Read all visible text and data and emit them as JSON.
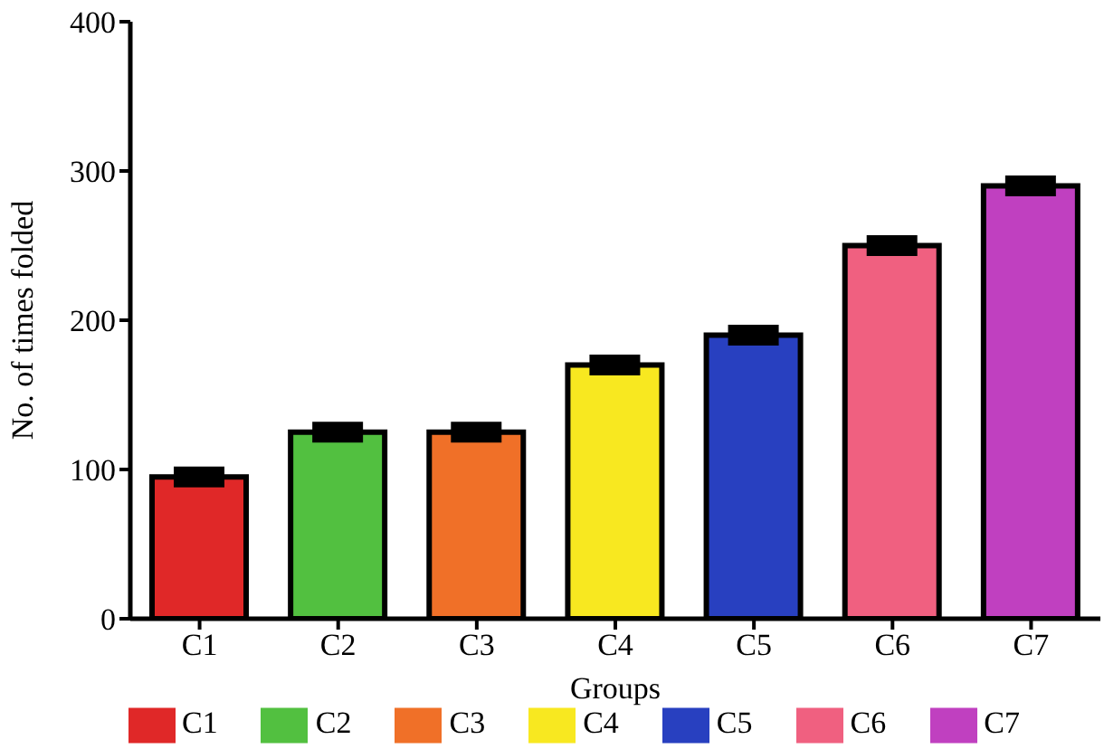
{
  "chart_data": {
    "type": "bar",
    "xlabel": "Groups",
    "ylabel": "No. of times folded",
    "categories": [
      "C1",
      "C2",
      "C3",
      "C4",
      "C5",
      "C6",
      "C7"
    ],
    "series": [
      {
        "name": "C1",
        "color": "#e02828",
        "values": [
          95,
          null,
          null,
          null,
          null,
          null,
          null
        ],
        "errors": [
          4,
          null,
          null,
          null,
          null,
          null,
          null
        ]
      },
      {
        "name": "C2",
        "color": "#52c040",
        "values": [
          null,
          125,
          null,
          null,
          null,
          null,
          null
        ],
        "errors": [
          null,
          4,
          null,
          null,
          null,
          null,
          null
        ]
      },
      {
        "name": "C3",
        "color": "#f07028",
        "values": [
          null,
          null,
          125,
          null,
          null,
          null,
          null
        ],
        "errors": [
          null,
          null,
          4,
          null,
          null,
          null,
          null
        ]
      },
      {
        "name": "C4",
        "color": "#f8e820",
        "values": [
          null,
          null,
          null,
          170,
          null,
          null,
          null
        ],
        "errors": [
          null,
          null,
          null,
          4,
          null,
          null,
          null
        ]
      },
      {
        "name": "C5",
        "color": "#2840c0",
        "values": [
          null,
          null,
          null,
          null,
          190,
          null,
          null
        ],
        "errors": [
          null,
          null,
          null,
          null,
          4,
          null,
          null
        ]
      },
      {
        "name": "C6",
        "color": "#f06080",
        "values": [
          null,
          null,
          null,
          null,
          null,
          250,
          null
        ],
        "errors": [
          null,
          null,
          null,
          null,
          null,
          4,
          null
        ]
      },
      {
        "name": "C7",
        "color": "#c040c0",
        "values": [
          null,
          null,
          null,
          null,
          null,
          null,
          290
        ],
        "errors": [
          null,
          null,
          null,
          null,
          null,
          null,
          4
        ]
      }
    ],
    "ylim": [
      0,
      400
    ],
    "yticks": [
      0,
      100,
      200,
      300,
      400
    ],
    "grid": false,
    "legend": "bottom"
  }
}
